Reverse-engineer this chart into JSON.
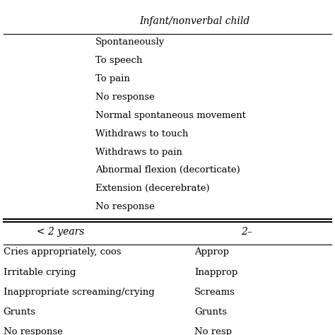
{
  "title": "Infant/nonverbal child",
  "top_section_rows": [
    "Spontaneously",
    "To speech",
    "To pain",
    "No response",
    "Normal spontaneous movement",
    "Withdraws to touch",
    "Withdraws to pain",
    "Abnormal flexion (decorticate)",
    "Extension (decerebrate)",
    "No response"
  ],
  "col_headers": [
    "< 2 years",
    "2–"
  ],
  "bottom_section_rows": [
    [
      "Cries appropriately, coos",
      "Approp"
    ],
    [
      "Irritable crying",
      "Inapprop"
    ],
    [
      "Inappropriate screaming/crying",
      "Screams"
    ],
    [
      "Grunts",
      "Grunts"
    ],
    [
      "No response",
      "No resp"
    ]
  ],
  "bg_color": "#ffffff",
  "text_color": "#000000",
  "font_size": 9.5,
  "header_font_size": 10,
  "col_header_font_size": 10
}
